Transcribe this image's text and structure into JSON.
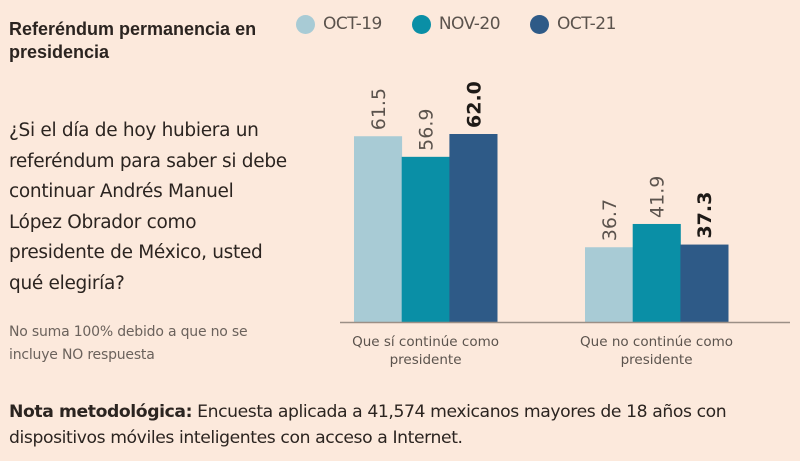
{
  "header": {
    "title": "Referéndum permanencia en presidencia",
    "question": "¿Si el día de hoy hubiera un referéndum para saber si debe continuar Andrés Manuel López Obrador como presidente de México, usted qué elegiría?",
    "note": "No suma 100% debido a que no se incluye NO respuesta"
  },
  "footer": {
    "label": "Nota metodológica:",
    "text": " Encuesta aplicada a 41,574 mexicanos mayores de 18 años con dispositivos móviles inteligentes con acceso a Internet."
  },
  "legend": [
    {
      "label": "OCT-19",
      "color": "#a8cbd5"
    },
    {
      "label": "NOV-20",
      "color": "#0a8fa6"
    },
    {
      "label": "OCT-21",
      "color": "#2e5a87"
    }
  ],
  "chart_data": {
    "type": "bar",
    "title": "Referéndum permanencia en presidencia",
    "xlabel": "",
    "ylabel": "",
    "grid": false,
    "legend_position": "top",
    "categories": [
      "Que sí continúe como presidente",
      "Que no continúe como presidente"
    ],
    "series": [
      {
        "name": "OCT-19",
        "color": "#a8cbd5",
        "values": [
          61.5,
          36.7
        ],
        "bold": false
      },
      {
        "name": "NOV-20",
        "color": "#0a8fa6",
        "values": [
          56.9,
          41.9
        ],
        "bold": false
      },
      {
        "name": "OCT-21",
        "color": "#2e5a87",
        "values": [
          62.0,
          37.3
        ],
        "bold": true
      }
    ],
    "value_labels": [
      [
        "61.5",
        "36.7"
      ],
      [
        "56.9",
        "41.9"
      ],
      [
        "62.0",
        "37.3"
      ]
    ],
    "category_label_lines": [
      [
        "Que sí continúe como",
        "presidente"
      ],
      [
        "Que no continúe como",
        "presidente"
      ]
    ],
    "ylim": [
      20,
      62
    ]
  }
}
